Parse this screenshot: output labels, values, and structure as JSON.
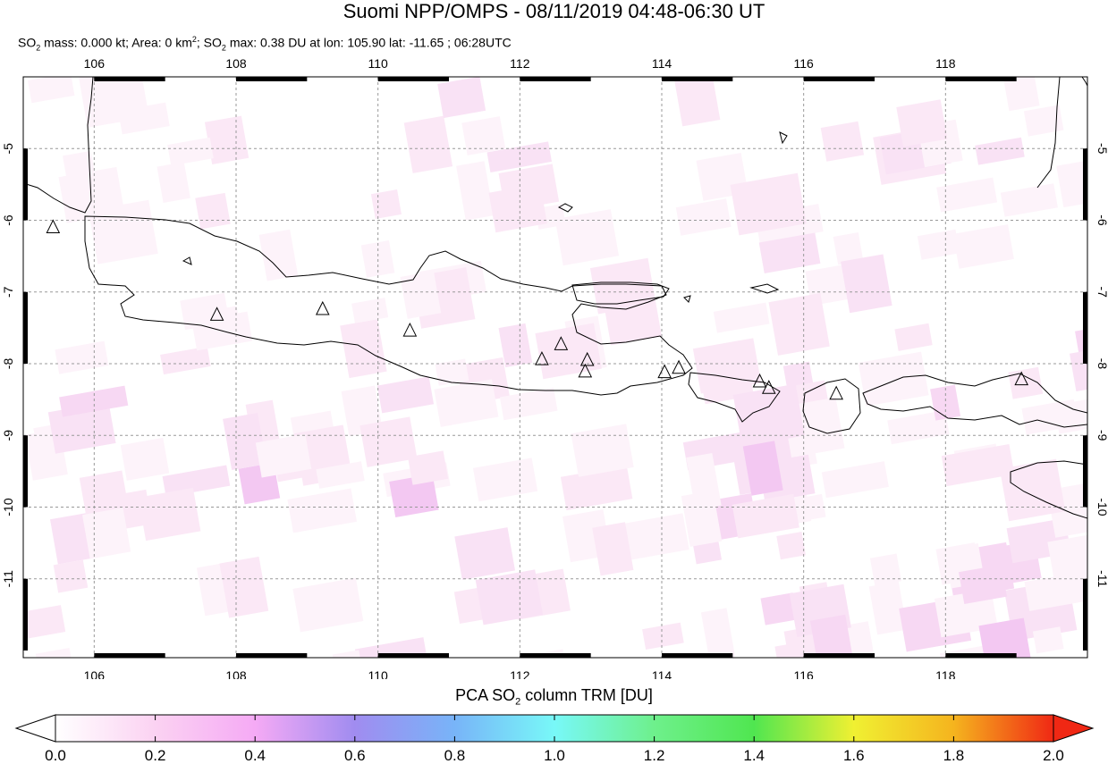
{
  "header": {
    "title": "Suomi NPP/OMPS - 08/11/2019 04:48-06:30 UT",
    "info_parts": [
      "SO",
      "2",
      " mass: 0.000 kt; Area: 0 km",
      "2",
      "; SO",
      "2",
      " max: 0.38 DU at lon: 105.90 lat: -11.65 ; 06:28UTC"
    ]
  },
  "map": {
    "lon_range": [
      105,
      120
    ],
    "lat_range": [
      -12.1,
      -4.0
    ],
    "lon_ticks": [
      "106",
      "108",
      "110",
      "112",
      "114",
      "116",
      "118"
    ],
    "lat_ticks": [
      "-5",
      "-6",
      "-7",
      "-8",
      "-9",
      "-10",
      "-11"
    ],
    "volcanoes": [
      {
        "lon": 105.42,
        "lat": -6.1
      },
      {
        "lon": 107.73,
        "lat": -7.32
      },
      {
        "lon": 109.22,
        "lat": -7.24
      },
      {
        "lon": 110.45,
        "lat": -7.54
      },
      {
        "lon": 112.31,
        "lat": -7.94
      },
      {
        "lon": 112.58,
        "lat": -7.73
      },
      {
        "lon": 112.95,
        "lat": -7.95
      },
      {
        "lon": 112.92,
        "lat": -8.11
      },
      {
        "lon": 114.04,
        "lat": -8.12
      },
      {
        "lon": 114.24,
        "lat": -8.06
      },
      {
        "lon": 115.38,
        "lat": -8.25
      },
      {
        "lon": 115.51,
        "lat": -8.34
      },
      {
        "lon": 116.46,
        "lat": -8.42
      },
      {
        "lon": 119.07,
        "lat": -8.22
      }
    ]
  },
  "colorbar": {
    "title_parts": [
      "PCA SO",
      "2",
      " column TRM [DU]"
    ],
    "range": [
      0.0,
      2.0
    ],
    "ticks": [
      "0.0",
      "0.2",
      "0.4",
      "0.6",
      "0.8",
      "1.0",
      "1.2",
      "1.4",
      "1.6",
      "1.8",
      "2.0"
    ],
    "colors": [
      "#ffffff",
      "#fbd2f2",
      "#f5aaf5",
      "#a08cf0",
      "#78b4f8",
      "#78f8f8",
      "#6ef08c",
      "#50e650",
      "#f0f032",
      "#f5b41e",
      "#f02814"
    ]
  }
}
